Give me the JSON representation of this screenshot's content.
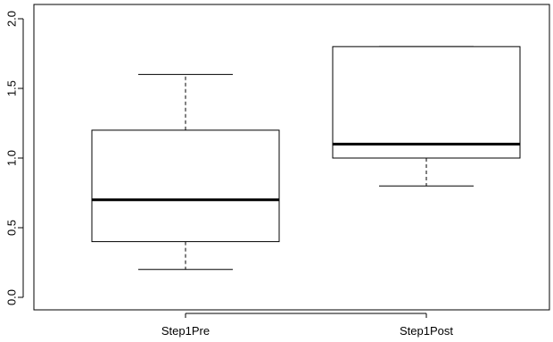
{
  "chart_data": {
    "type": "boxplot",
    "categories": [
      "Step1Pre",
      "Step1Post"
    ],
    "boxes": [
      {
        "category": "Step1Pre",
        "min": 0.2,
        "q1": 0.4,
        "median": 0.7,
        "q3": 1.2,
        "max": 1.6
      },
      {
        "category": "Step1Post",
        "min": 0.8,
        "q1": 1.0,
        "median": 1.1,
        "q3": 1.8,
        "max": 1.8
      }
    ],
    "y_ticks": [
      "0.0",
      "0.5",
      "1.0",
      "1.5",
      "2.0"
    ],
    "ylim": [
      0,
      2.05
    ],
    "grid": false,
    "colors": {
      "stroke": "#000000",
      "fill": "#ffffff"
    }
  }
}
